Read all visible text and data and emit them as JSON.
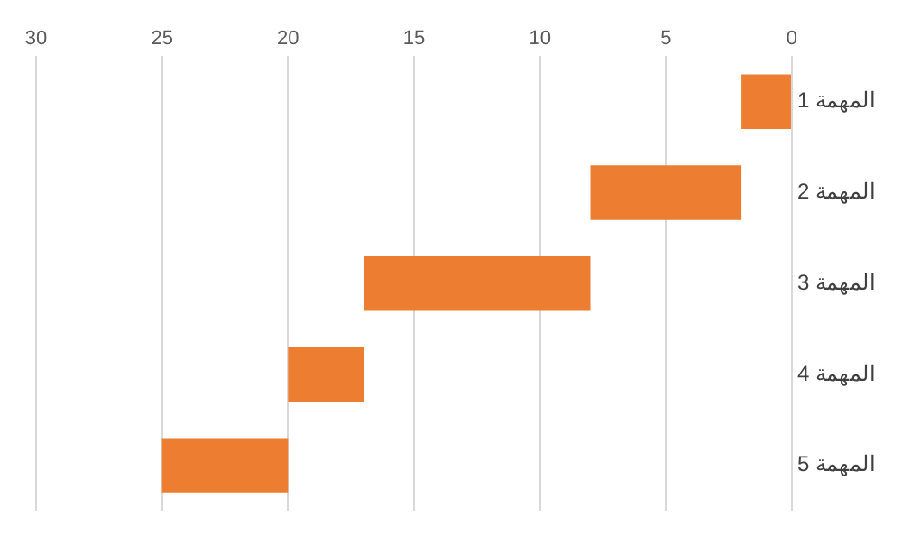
{
  "chart_data": {
    "type": "bar",
    "orientation": "horizontal",
    "categories": [
      "المهمة 1",
      "المهمة 2",
      "المهمة 3",
      "المهمة 4",
      "المهمة 5"
    ],
    "values": [
      2,
      6,
      9,
      3,
      5
    ],
    "base": [
      0,
      2,
      8,
      17,
      20
    ],
    "color": "#ed7d31",
    "xlim": [
      30,
      0
    ],
    "xticks": [
      0,
      5,
      10,
      15,
      20,
      25,
      30
    ],
    "grid": "x",
    "legend": false
  }
}
